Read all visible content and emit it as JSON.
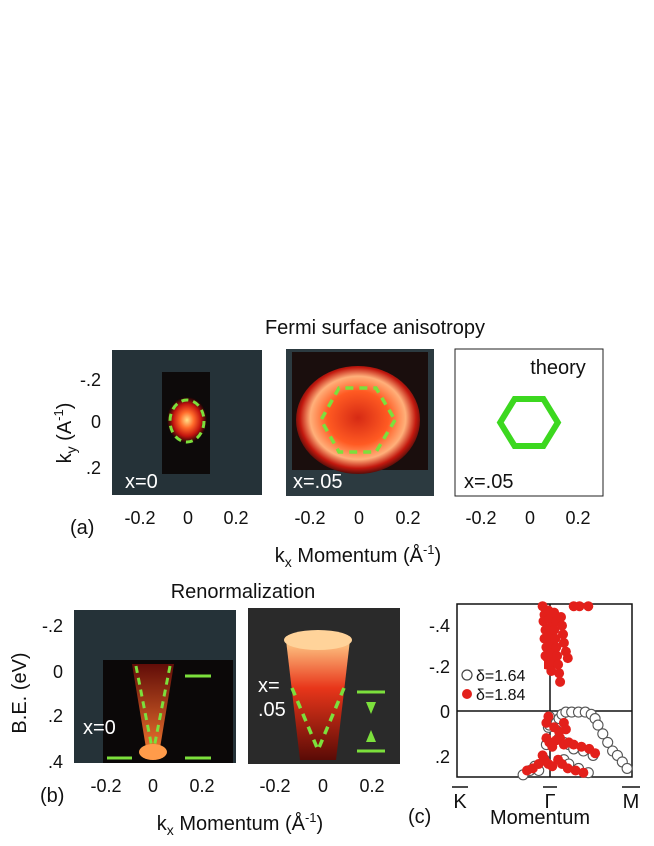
{
  "figure": {
    "title_top": "Fermi surface anisotropy",
    "title_bottom": "Renormalization",
    "panel_a_label": "(a)",
    "panel_b_label": "(b)",
    "panel_c_label": "(c)",
    "ky_label": "k",
    "ky_sub": "y",
    "ky_units": "(A",
    "ky_exp": "-1",
    "ky_close": ")",
    "kx_label": "k",
    "kx_sub": "x",
    "kx_units": "Momentum (Å",
    "kx_exp": "-1",
    "kx_close": ")",
    "be_label": "B.E. (eV)",
    "momentum_label": "Momentum"
  },
  "colors": {
    "dark_bg": "#253238",
    "green": "#7ce03c",
    "red": "#e3201b",
    "hex_green": "#3cd81f"
  },
  "chart_data": [
    {
      "type": "heatmap",
      "panel": "a1",
      "annotation": "x=0",
      "x_ticks": [
        "-0.2",
        "0",
        "0.2"
      ],
      "y_ticks": [
        "-.2",
        "0",
        ".2"
      ],
      "xlim": [
        -0.3,
        0.3
      ],
      "ylim": [
        -0.3,
        0.3
      ]
    },
    {
      "type": "heatmap",
      "panel": "a2",
      "annotation": "x=.05",
      "x_ticks": [
        "-0.2",
        "0",
        "0.2"
      ],
      "xlim": [
        -0.3,
        0.3
      ],
      "ylim": [
        -0.3,
        0.3
      ]
    },
    {
      "type": "line",
      "panel": "a3",
      "title": "theory",
      "annotation": "x=.05",
      "x_ticks": [
        "-0.2",
        "0",
        "0.2"
      ],
      "xlim": [
        -0.3,
        0.3
      ],
      "ylim": [
        -0.3,
        0.3
      ],
      "hexagon_radius": 0.12
    },
    {
      "type": "heatmap",
      "panel": "b1",
      "annotation": "x=0",
      "x_ticks": [
        "-0.2",
        "0",
        "0.2"
      ],
      "y_ticks": [
        "-.2",
        "0",
        ".2",
        ".4"
      ],
      "xlim": [
        -0.3,
        0.3
      ],
      "ylim": [
        -0.25,
        0.4
      ]
    },
    {
      "type": "heatmap",
      "panel": "b2",
      "annotation_line1": "x=",
      "annotation_line2": ".05",
      "x_ticks": [
        "-0.2",
        "0",
        "0.2"
      ],
      "xlim": [
        -0.3,
        0.3
      ],
      "ylim": [
        -0.25,
        0.4
      ]
    },
    {
      "type": "scatter",
      "panel": "c",
      "xlabel": "Momentum",
      "x_ticks": [
        "K",
        "Γ",
        "M"
      ],
      "y_ticks": [
        "-.4",
        "-.2",
        "0",
        ".2"
      ],
      "ylim": [
        -0.5,
        0.3
      ],
      "xlim": [
        -1,
        0.8
      ],
      "series": [
        {
          "name": "δ=1.64",
          "marker": "open",
          "points": [
            [
              -0.32,
              0.29
            ],
            [
              -0.25,
              0.27
            ],
            [
              -0.2,
              0.25
            ],
            [
              -0.16,
              0.27
            ],
            [
              -0.1,
              0.22
            ],
            [
              -0.08,
              0.15
            ],
            [
              -0.06,
              0.07
            ],
            [
              -0.05,
              0.02
            ],
            [
              -0.05,
              0.06
            ],
            [
              0.02,
              0.05
            ],
            [
              0.05,
              0.03
            ],
            [
              0.08,
              0.01
            ],
            [
              0.12,
              0.0
            ],
            [
              0.18,
              0.0
            ],
            [
              0.25,
              0.0
            ],
            [
              0.32,
              0.0
            ],
            [
              0.38,
              0.01
            ],
            [
              0.42,
              0.03
            ],
            [
              0.45,
              0.06
            ],
            [
              0.5,
              0.1
            ],
            [
              0.55,
              0.14
            ],
            [
              0.6,
              0.18
            ],
            [
              0.65,
              0.2
            ],
            [
              0.7,
              0.23
            ],
            [
              0.75,
              0.26
            ],
            [
              0.05,
              0.12
            ],
            [
              0.1,
              0.14
            ],
            [
              0.15,
              0.15
            ],
            [
              0.2,
              0.17
            ],
            [
              0.3,
              0.18
            ],
            [
              0.4,
              0.2
            ],
            [
              0.1,
              0.22
            ],
            [
              0.15,
              0.24
            ],
            [
              0.25,
              0.26
            ],
            [
              0.35,
              0.28
            ]
          ]
        },
        {
          "name": "δ=1.84",
          "marker": "filled",
          "points": [
            [
              -0.12,
              -0.49
            ],
            [
              -0.1,
              -0.45
            ],
            [
              -0.11,
              -0.42
            ],
            [
              -0.09,
              -0.38
            ],
            [
              -0.1,
              -0.34
            ],
            [
              -0.08,
              -0.3
            ],
            [
              -0.09,
              -0.26
            ],
            [
              -0.08,
              -0.22
            ],
            [
              -0.06,
              -0.47
            ],
            [
              -0.05,
              -0.43
            ],
            [
              -0.04,
              -0.39
            ],
            [
              -0.05,
              -0.35
            ],
            [
              -0.04,
              -0.31
            ],
            [
              -0.03,
              -0.27
            ],
            [
              -0.02,
              -0.23
            ],
            [
              -0.03,
              -0.19
            ],
            [
              0.0,
              -0.46
            ],
            [
              0.02,
              -0.42
            ],
            [
              0.0,
              -0.38
            ],
            [
              0.01,
              -0.34
            ],
            [
              0.02,
              -0.3
            ],
            [
              0.03,
              -0.26
            ],
            [
              0.04,
              -0.22
            ],
            [
              0.05,
              -0.18
            ],
            [
              0.06,
              -0.14
            ],
            [
              0.07,
              -0.44
            ],
            [
              0.08,
              -0.4
            ],
            [
              0.09,
              -0.36
            ],
            [
              0.1,
              -0.32
            ],
            [
              0.12,
              -0.28
            ],
            [
              0.14,
              -0.25
            ],
            [
              0.2,
              -0.49
            ],
            [
              0.26,
              -0.49
            ],
            [
              0.35,
              -0.49
            ],
            [
              -0.08,
              0.12
            ],
            [
              -0.05,
              0.14
            ],
            [
              -0.02,
              0.16
            ],
            [
              0.02,
              0.13
            ],
            [
              0.06,
              0.12
            ],
            [
              0.1,
              0.15
            ],
            [
              0.15,
              0.14
            ],
            [
              0.2,
              0.15
            ],
            [
              0.28,
              0.16
            ],
            [
              0.36,
              0.17
            ],
            [
              0.42,
              0.19
            ],
            [
              -0.1,
              0.22
            ],
            [
              -0.06,
              0.24
            ],
            [
              -0.02,
              0.25
            ],
            [
              0.04,
              0.22
            ],
            [
              0.08,
              0.24
            ],
            [
              0.14,
              0.26
            ],
            [
              0.22,
              0.27
            ],
            [
              0.3,
              0.28
            ],
            [
              -0.28,
              0.27
            ],
            [
              -0.22,
              0.26
            ],
            [
              -0.16,
              0.24
            ],
            [
              -0.12,
              0.2
            ],
            [
              -0.08,
              0.05
            ],
            [
              -0.06,
              0.02
            ],
            [
              0.0,
              0.07
            ],
            [
              0.05,
              0.09
            ],
            [
              0.1,
              0.05
            ],
            [
              0.12,
              0.08
            ]
          ]
        }
      ]
    }
  ]
}
